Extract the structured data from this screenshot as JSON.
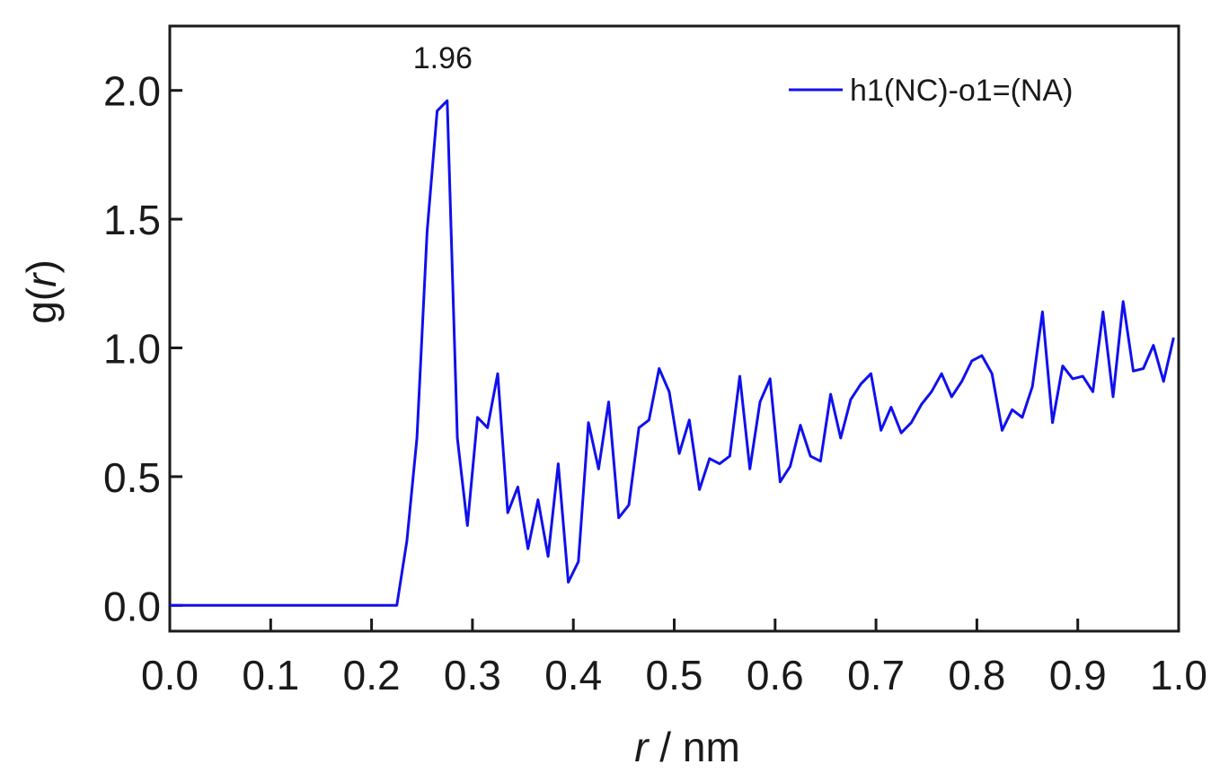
{
  "chart_data": {
    "type": "line",
    "xlabel_var": "r",
    "xlabel_unit": " / nm",
    "ylabel_func": "g(",
    "ylabel_var": "r",
    "ylabel_close": ")",
    "xlim": [
      0.0,
      1.0
    ],
    "ylim": [
      -0.1,
      2.25
    ],
    "x_ticks": [
      "0.0",
      "0.1",
      "0.2",
      "0.3",
      "0.4",
      "0.5",
      "0.6",
      "0.7",
      "0.8",
      "0.9",
      "1.0"
    ],
    "y_ticks": [
      "0.0",
      "0.5",
      "1.0",
      "1.5",
      "2.0"
    ],
    "grid": false,
    "legend_position": "top-right",
    "annotations": [
      {
        "text": "1.96",
        "x": 0.275,
        "y": 1.96
      }
    ],
    "series": [
      {
        "name": "h1(NC)-o1=(NA)",
        "color": "#1010ee",
        "x": [
          0.0,
          0.01,
          0.02,
          0.03,
          0.04,
          0.05,
          0.06,
          0.07,
          0.08,
          0.09,
          0.1,
          0.11,
          0.12,
          0.13,
          0.14,
          0.15,
          0.16,
          0.17,
          0.18,
          0.19,
          0.2,
          0.21,
          0.22,
          0.225,
          0.235,
          0.245,
          0.255,
          0.265,
          0.275,
          0.285,
          0.295,
          0.305,
          0.315,
          0.325,
          0.335,
          0.345,
          0.355,
          0.365,
          0.375,
          0.385,
          0.395,
          0.405,
          0.415,
          0.425,
          0.435,
          0.445,
          0.455,
          0.465,
          0.475,
          0.485,
          0.495,
          0.505,
          0.515,
          0.525,
          0.535,
          0.545,
          0.555,
          0.565,
          0.575,
          0.585,
          0.595,
          0.605,
          0.615,
          0.625,
          0.635,
          0.645,
          0.655,
          0.665,
          0.675,
          0.685,
          0.695,
          0.705,
          0.715,
          0.725,
          0.735,
          0.745,
          0.755,
          0.765,
          0.775,
          0.785,
          0.795,
          0.805,
          0.815,
          0.825,
          0.835,
          0.845,
          0.855,
          0.865,
          0.875,
          0.885,
          0.895,
          0.905,
          0.915,
          0.925,
          0.935,
          0.945,
          0.955,
          0.965,
          0.975,
          0.985,
          0.995
        ],
        "y": [
          0,
          0,
          0,
          0,
          0,
          0,
          0,
          0,
          0,
          0,
          0,
          0,
          0,
          0,
          0,
          0,
          0,
          0,
          0,
          0,
          0,
          0,
          0,
          0,
          0.25,
          0.65,
          1.45,
          1.92,
          1.96,
          0.65,
          0.31,
          0.73,
          0.69,
          0.9,
          0.36,
          0.46,
          0.22,
          0.41,
          0.19,
          0.55,
          0.09,
          0.17,
          0.71,
          0.53,
          0.79,
          0.34,
          0.39,
          0.69,
          0.72,
          0.92,
          0.83,
          0.59,
          0.72,
          0.45,
          0.57,
          0.55,
          0.58,
          0.89,
          0.53,
          0.79,
          0.88,
          0.48,
          0.54,
          0.7,
          0.58,
          0.56,
          0.82,
          0.65,
          0.8,
          0.86,
          0.9,
          0.68,
          0.77,
          0.67,
          0.71,
          0.78,
          0.83,
          0.9,
          0.81,
          0.87,
          0.95,
          0.97,
          0.9,
          0.68,
          0.76,
          0.73,
          0.85,
          1.14,
          0.71,
          0.93,
          0.88,
          0.89,
          0.83,
          1.14,
          0.81,
          1.18,
          0.91,
          0.92,
          1.01,
          0.87,
          1.04
        ]
      }
    ]
  }
}
